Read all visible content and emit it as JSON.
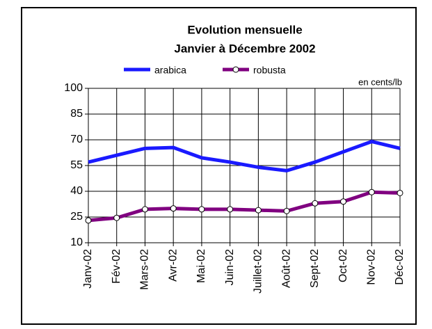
{
  "chart_data": {
    "type": "line",
    "title": "Evolution mensuelle",
    "subtitle": "Janvier à Décembre 2002",
    "unit_label": "en cents/lb",
    "categories": [
      "Janv-02",
      "Fév-02",
      "Mars-02",
      "Avr-02",
      "Mai-02",
      "Juin-02",
      "Juillet-02",
      "Août-02",
      "Sept-02",
      "Oct-02",
      "Nov-02",
      "Déc-02"
    ],
    "series": [
      {
        "name": "arabica",
        "color": "#1a1aff",
        "marker": false,
        "values": [
          57,
          61,
          65,
          65.5,
          59.5,
          57,
          54,
          52,
          57,
          63,
          69,
          65
        ]
      },
      {
        "name": "robusta",
        "color": "#800080",
        "marker": true,
        "values": [
          23,
          24.5,
          29.5,
          30,
          29.5,
          29.5,
          29,
          28.5,
          33,
          34,
          39.5,
          39
        ]
      }
    ],
    "ylim": [
      10,
      100
    ],
    "yticks": [
      10,
      25,
      40,
      55,
      70,
      85,
      100
    ],
    "grid": true
  }
}
